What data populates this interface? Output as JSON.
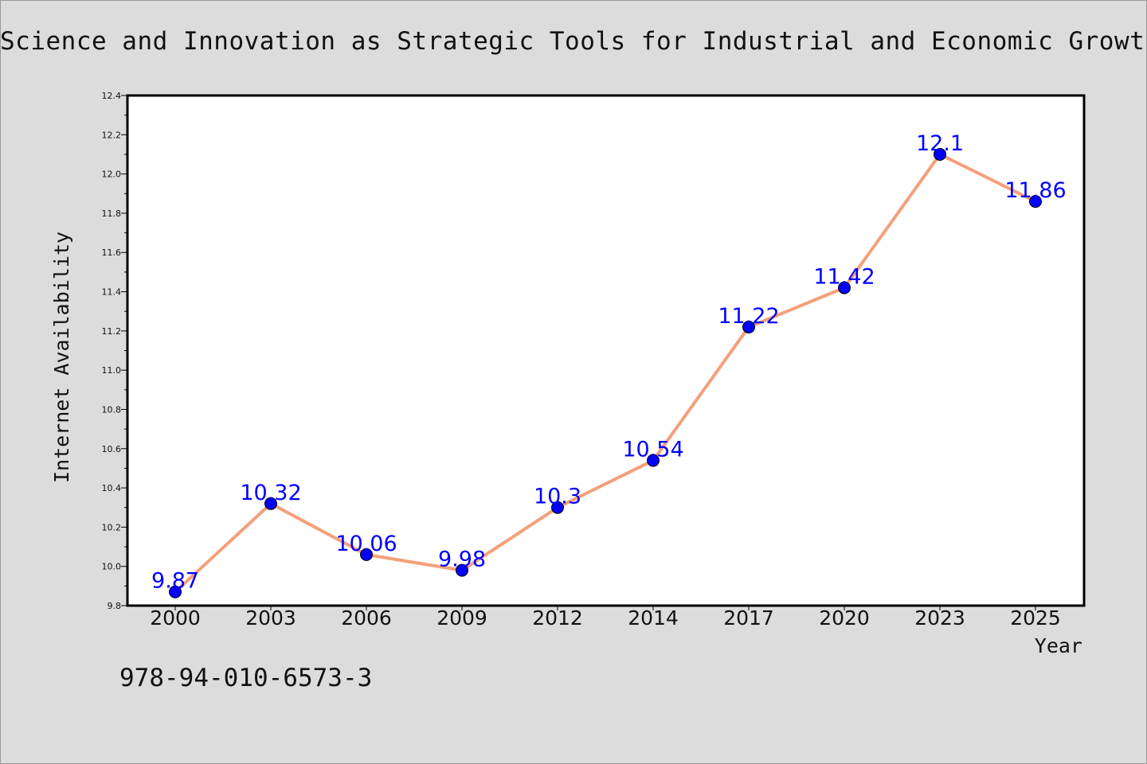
{
  "title": "Science and Innovation as Strategic Tools for Industrial and Economic Growth",
  "footer_code": "978-94-010-6573-3",
  "colors": {
    "background": "#dcdcdc",
    "plot_background": "#ffffff",
    "line": "#f4a07a",
    "marker": "#0000ff",
    "data_label": "#0000ff"
  },
  "chart_data": {
    "type": "line",
    "xlabel": "Year",
    "ylabel": "Internet Availability",
    "categories": [
      "2000",
      "2003",
      "2006",
      "2009",
      "2012",
      "2014",
      "2017",
      "2020",
      "2023",
      "2025"
    ],
    "series": [
      {
        "values": [
          9.87,
          10.32,
          10.06,
          9.98,
          10.3,
          10.54,
          11.22,
          11.42,
          12.1,
          11.86
        ],
        "labels": [
          "9.87",
          "10.32",
          "10.06",
          "9.98",
          "10.3",
          "10.54",
          "11.22",
          "11.42",
          "12.1",
          "11.86"
        ]
      }
    ],
    "ylim": [
      9.8,
      12.4
    ],
    "yticks": [
      "9.8",
      "10.0",
      "10.2",
      "10.4",
      "10.6",
      "10.8",
      "11.0",
      "11.2",
      "11.4",
      "11.6",
      "11.8",
      "12.0",
      "12.2",
      "12.4"
    ],
    "grid": false,
    "legend": "none"
  }
}
